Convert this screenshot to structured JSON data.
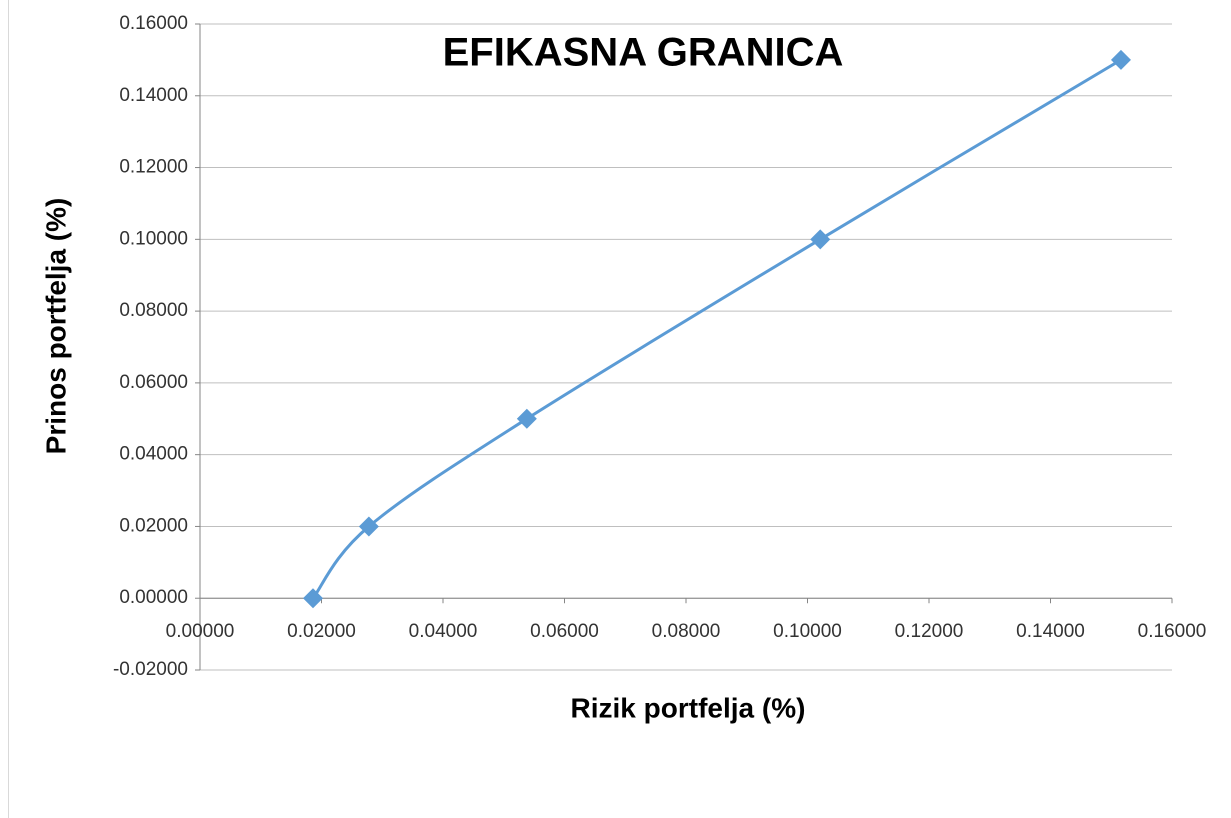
{
  "chart_data": {
    "type": "scatter",
    "title": "EFIKASNA GRANICA",
    "x_label": "Rizik portfelja (%)",
    "y_label": "Prinos portfelja (%)",
    "x": [
      0.0186,
      0.0278,
      0.0538,
      0.1021,
      0.1516
    ],
    "series": [
      {
        "color": "#5b9bd5",
        "values": [
          0,
          0.02,
          0.05,
          0.1,
          0.15
        ]
      }
    ],
    "smooth": true,
    "marker": "diamond",
    "grid": true,
    "xlim": [
      0,
      0.16
    ],
    "xticks": [
      {
        "value": 0,
        "label": "0.00000"
      },
      {
        "value": 0.02,
        "label": "0.02000"
      },
      {
        "value": 0.04,
        "label": "0.04000"
      },
      {
        "value": 0.06,
        "label": "0.06000"
      },
      {
        "value": 0.08,
        "label": "0.08000"
      },
      {
        "value": 0.1,
        "label": "0.10000"
      },
      {
        "value": 0.12,
        "label": "0.12000"
      },
      {
        "value": 0.14,
        "label": "0.14000"
      },
      {
        "value": 0.16,
        "label": "0.16000"
      }
    ],
    "ylim": [
      -0.02,
      0.16
    ],
    "yticks": [
      {
        "value": -0.02,
        "label": "-0.02000"
      },
      {
        "value": 0,
        "label": "0.00000"
      },
      {
        "value": 0.02,
        "label": "0.02000"
      },
      {
        "value": 0.04,
        "label": "0.04000"
      },
      {
        "value": 0.06,
        "label": "0.06000"
      },
      {
        "value": 0.08,
        "label": "0.08000"
      },
      {
        "value": 0.1,
        "label": "0.10000"
      },
      {
        "value": 0.12,
        "label": "0.12000"
      },
      {
        "value": 0.14,
        "label": "0.14000"
      },
      {
        "value": 0.16,
        "label": "0.16000"
      }
    ]
  }
}
